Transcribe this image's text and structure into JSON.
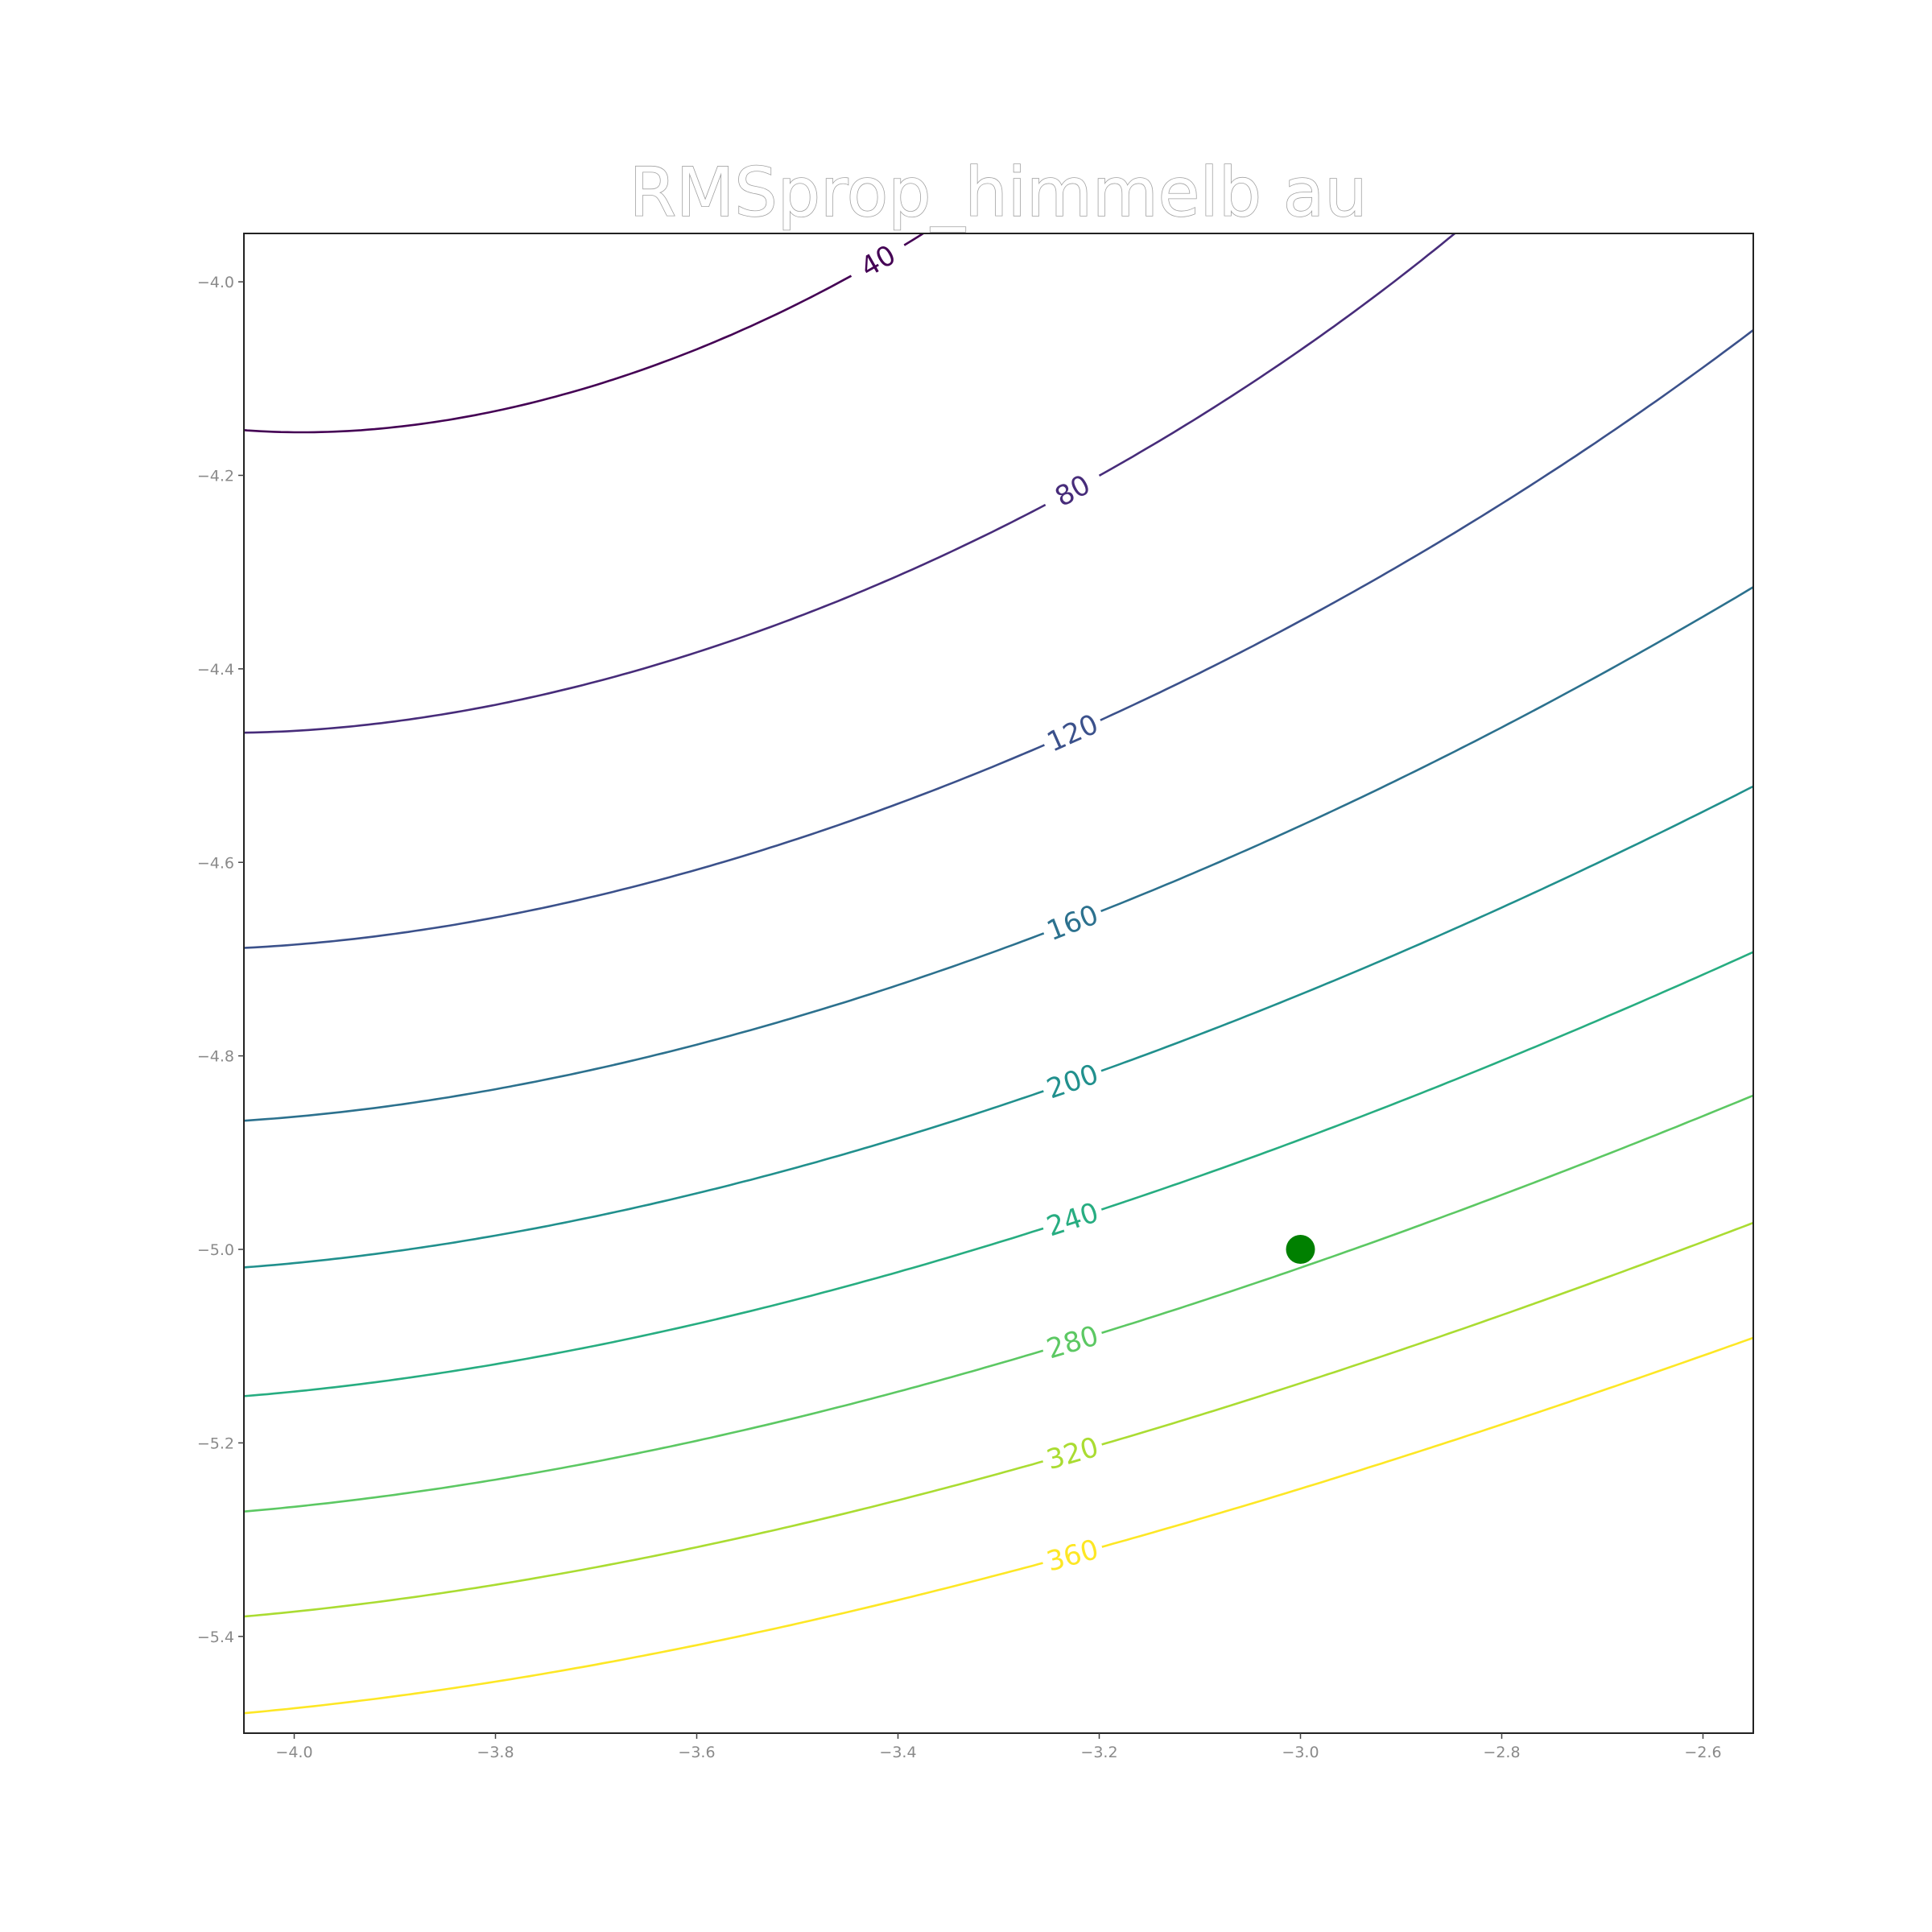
{
  "chart_data": {
    "type": "contour",
    "title": "RMSprop_himmelb au",
    "xlabel": "",
    "ylabel": "",
    "xlim": [
      -4.05,
      -2.55
    ],
    "ylim": [
      -5.5,
      -3.95
    ],
    "x_ticks": [
      -4.0,
      -3.8,
      -3.6,
      -3.4,
      -3.2,
      -3.0,
      -2.8,
      -2.6
    ],
    "x_tick_labels": [
      "−4.0",
      "−3.8",
      "−3.6",
      "−3.4",
      "−3.2",
      "−3.0",
      "−2.8",
      "−2.6"
    ],
    "y_ticks": [
      -4.0,
      -4.2,
      -4.4,
      -4.6,
      -4.8,
      -5.0,
      -5.2,
      -5.4
    ],
    "y_tick_labels": [
      "−4.0",
      "−4.2",
      "−4.4",
      "−4.6",
      "−4.8",
      "−5.0",
      "−5.2",
      "−5.4"
    ],
    "function": "himmelblau",
    "colormap": "viridis",
    "grid": false,
    "levels": [
      {
        "value": 40,
        "label": "40",
        "color": "#440154"
      },
      {
        "value": 80,
        "label": "80",
        "color": "#472c7a"
      },
      {
        "value": 120,
        "label": "120",
        "color": "#3b518b"
      },
      {
        "value": 160,
        "label": "160",
        "color": "#2c718e"
      },
      {
        "value": 200,
        "label": "200",
        "color": "#21908d"
      },
      {
        "value": 240,
        "label": "240",
        "color": "#27ad81"
      },
      {
        "value": 280,
        "label": "280",
        "color": "#5cc863"
      },
      {
        "value": 320,
        "label": "320",
        "color": "#aadc32"
      },
      {
        "value": 360,
        "label": "360",
        "color": "#fde725"
      }
    ],
    "point": {
      "x": -3.0,
      "y": -5.0,
      "color": "#008000"
    }
  }
}
